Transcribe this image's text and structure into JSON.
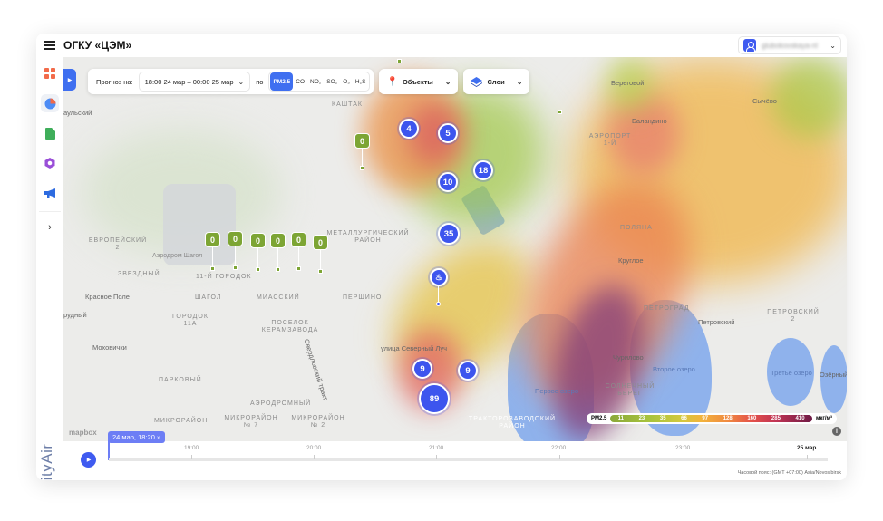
{
  "header": {
    "title": "ОГКУ «ЦЭМ»",
    "user": "glubokovskaya-nl"
  },
  "sidebar": {
    "items": [
      "dashboard",
      "monitoring",
      "reports",
      "objects",
      "notifications"
    ],
    "logo": "CityAir"
  },
  "toolbar": {
    "forecast_label": "Прогноз на:",
    "forecast_value": "18:00 24 мар – 00:00 25 мар",
    "by_label": "по",
    "pollutants": [
      {
        "label": "PM2.5",
        "active": true
      },
      {
        "label": "CO"
      },
      {
        "label": "NO₂"
      },
      {
        "label": "SO₂"
      },
      {
        "label": "O₃"
      },
      {
        "label": "H₂S"
      }
    ],
    "objects_label": "Объекты",
    "layers_label": "Слои"
  },
  "map": {
    "places": [
      "аульский",
      "Красное Поле",
      "рудный",
      "Моховички",
      "Береговой",
      "Баландино",
      "Сычёво",
      "Круглое",
      "Петровский",
      "Озёрный",
      "Первое озеро",
      "Второе озеро",
      "Третье озеро",
      "Чурилово",
      "улица Северный Луч",
      "Свердловский тракт"
    ],
    "districts": [
      "Каштак",
      "Металлургический район",
      "Европейский 2",
      "Звездный",
      "Аэродром Шагол",
      "11-й городок",
      "Шагол",
      "Городок 11А",
      "Миасский",
      "Першино",
      "Поселок Керамзавода",
      "Парковый",
      "Аэродромный",
      "Микрорайон",
      "Микрорайон № 7",
      "Микрорайон № 2",
      "Аэропорт 1-й",
      "Поляна",
      "Петроград",
      "Петровский 2",
      "Солнечный берег",
      "Тракторозаводский район"
    ],
    "clusters": [
      "4",
      "5",
      "10",
      "18",
      "35",
      "9",
      "9",
      "89"
    ],
    "station_values": [
      "0",
      "0",
      "0",
      "0",
      "0",
      "0",
      "0"
    ],
    "attribution": "mapbox"
  },
  "legend": {
    "pollutant": "PM2.5",
    "values": [
      "11",
      "23",
      "35",
      "66",
      "97",
      "128",
      "160",
      "285",
      "410"
    ],
    "unit": "мкг/м³"
  },
  "timeline": {
    "current": "24 мар, 18:20",
    "ticks": [
      "19:00",
      "20:00",
      "21:00",
      "22:00",
      "23:00",
      "25 мар"
    ],
    "timezone": "Часовой пояс: (GMT +07:00) Asia/Novosibirsk",
    "progress": 0.0
  }
}
